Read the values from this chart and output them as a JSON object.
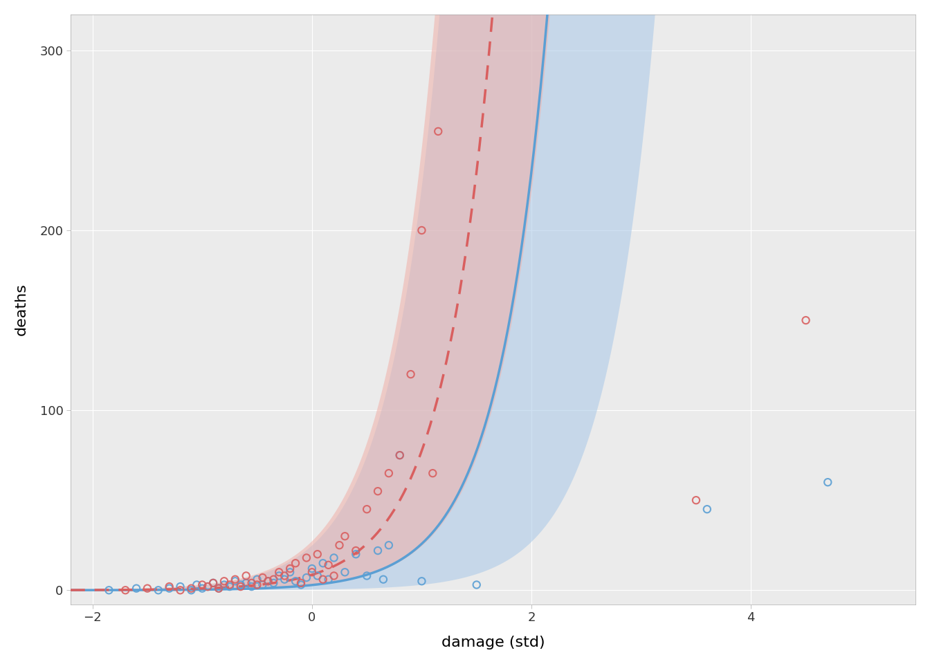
{
  "xlabel": "damage (std)",
  "ylabel": "deaths",
  "xlim": [
    -2.2,
    5.5
  ],
  "ylim": [
    -8,
    320
  ],
  "xticks": [
    -2,
    0,
    2,
    4
  ],
  "yticks": [
    0,
    100,
    200,
    300
  ],
  "bg_color": "#ffffff",
  "panel_bg": "#ebebeb",
  "blue_line_color": "#5a9fd4",
  "pink_line_color": "#d95f5f",
  "blue_fill_color": "#a8c8e8",
  "pink_fill_color": "#f0b0a8",
  "scatter_blue_color": "#5a9fd4",
  "scatter_pink_color": "#d95f5f",
  "scatter_blue": {
    "x": [
      -1.85,
      -1.6,
      -1.4,
      -1.3,
      -1.2,
      -1.1,
      -1.05,
      -1.0,
      -0.95,
      -0.9,
      -0.85,
      -0.8,
      -0.75,
      -0.7,
      -0.65,
      -0.6,
      -0.55,
      -0.5,
      -0.45,
      -0.4,
      -0.35,
      -0.3,
      -0.25,
      -0.2,
      -0.15,
      -0.1,
      -0.05,
      0.0,
      0.05,
      0.1,
      0.15,
      0.2,
      0.3,
      0.4,
      0.5,
      0.6,
      0.65,
      0.7,
      0.8,
      1.0,
      1.5,
      3.6,
      4.7
    ],
    "y": [
      0,
      1,
      0,
      1,
      2,
      0,
      3,
      1,
      2,
      4,
      1,
      3,
      2,
      5,
      3,
      4,
      2,
      6,
      3,
      5,
      4,
      8,
      6,
      10,
      5,
      3,
      7,
      12,
      8,
      15,
      6,
      18,
      10,
      20,
      8,
      22,
      6,
      25,
      75,
      5,
      3,
      45,
      60
    ]
  },
  "scatter_pink": {
    "x": [
      -1.7,
      -1.5,
      -1.3,
      -1.2,
      -1.1,
      -1.0,
      -0.95,
      -0.9,
      -0.85,
      -0.8,
      -0.75,
      -0.7,
      -0.65,
      -0.6,
      -0.55,
      -0.5,
      -0.45,
      -0.4,
      -0.35,
      -0.3,
      -0.25,
      -0.2,
      -0.15,
      -0.1,
      -0.05,
      0.0,
      0.05,
      0.1,
      0.15,
      0.2,
      0.25,
      0.3,
      0.4,
      0.5,
      0.6,
      0.7,
      0.8,
      0.9,
      1.0,
      1.1,
      1.15,
      3.5,
      4.5
    ],
    "y": [
      0,
      1,
      2,
      0,
      1,
      3,
      2,
      4,
      1,
      5,
      3,
      6,
      2,
      8,
      4,
      3,
      7,
      5,
      6,
      10,
      8,
      12,
      15,
      4,
      18,
      10,
      20,
      6,
      14,
      8,
      25,
      30,
      22,
      45,
      55,
      65,
      75,
      120,
      200,
      65,
      255,
      50,
      150
    ]
  },
  "a": 1.6,
  "b": 2.2,
  "c": 0.55,
  "sigma_blue": 1.35,
  "sigma_pink": 0.72
}
